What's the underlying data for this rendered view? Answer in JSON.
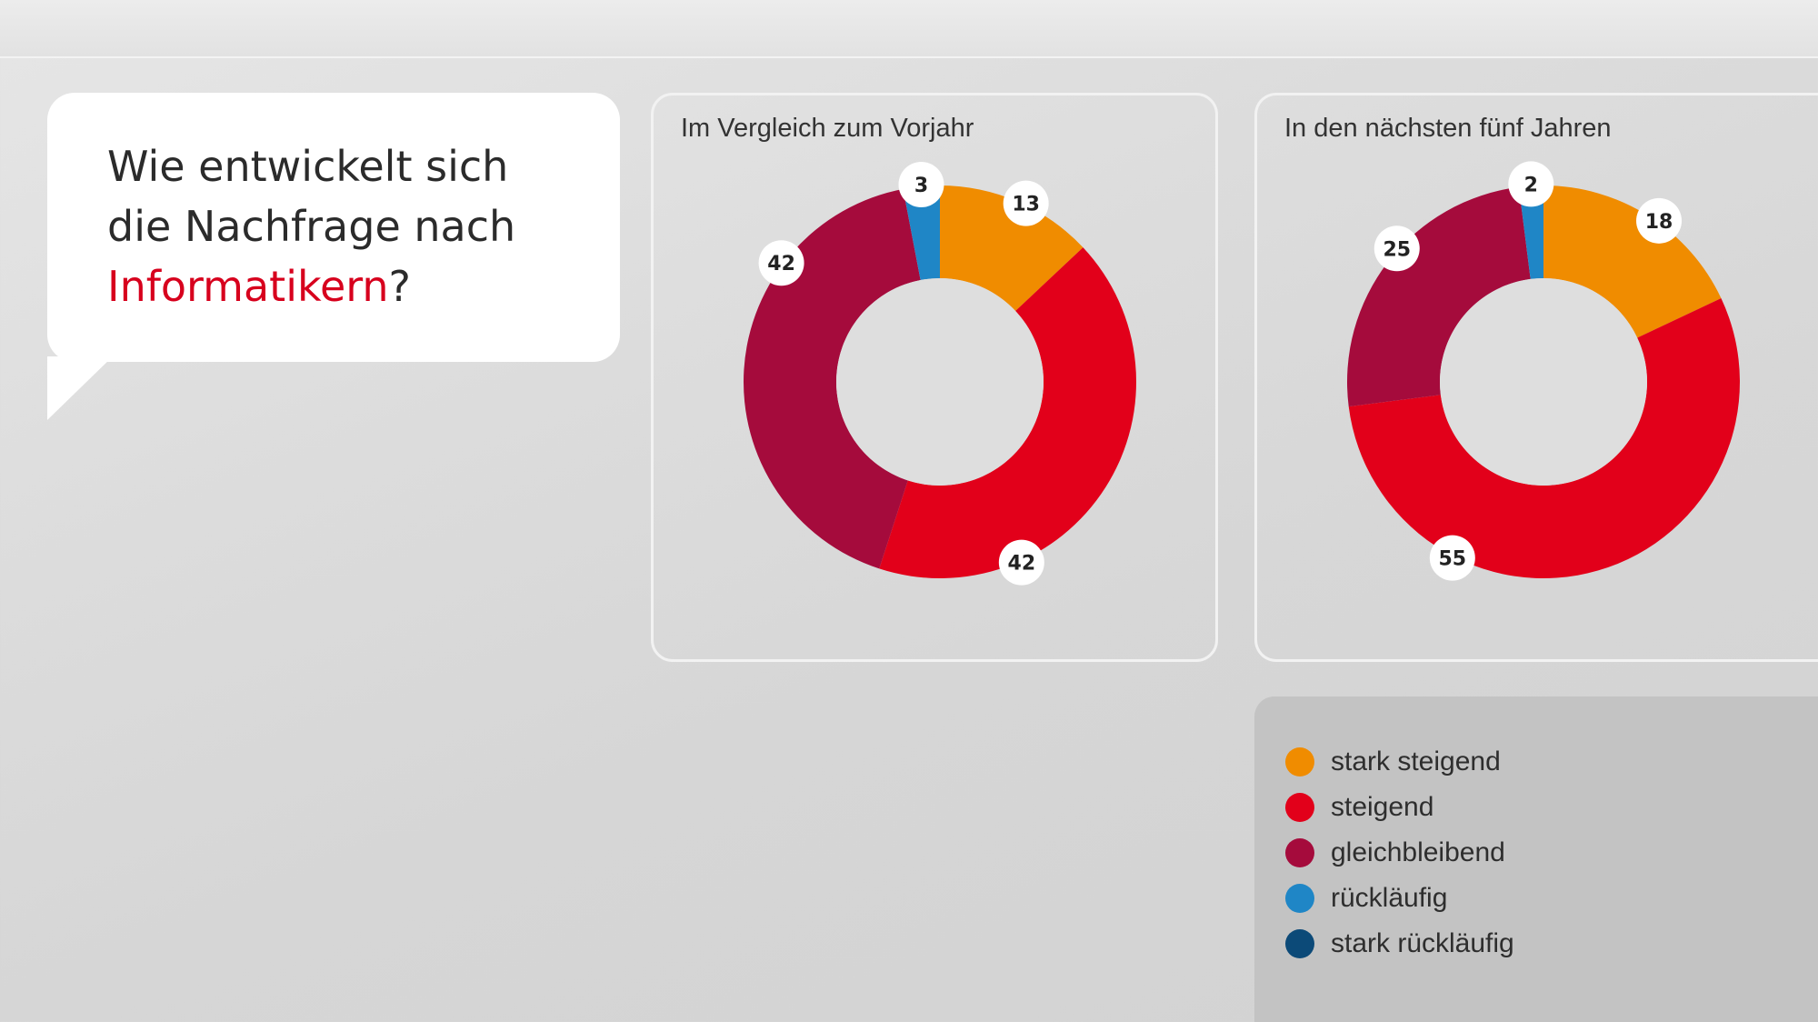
{
  "question": {
    "line1": "Wie entwickelt sich",
    "line2": "die Nachfrage nach",
    "highlight": "Informatikern",
    "suffix": "?"
  },
  "colors": {
    "stark_steigend": "#f08c00",
    "steigend": "#e2001a",
    "gleichbleibend": "#a50b3c",
    "ruecklaeufig": "#1f86c6",
    "stark_ruecklaeufig": "#0c4a78",
    "highlight_text": "#d7001d"
  },
  "legend": [
    {
      "label": "stark steigend",
      "color": "#f08c00"
    },
    {
      "label": "steigend",
      "color": "#e2001a"
    },
    {
      "label": "gleichbleibend",
      "color": "#a50b3c"
    },
    {
      "label": "rückläufig",
      "color": "#1f86c6"
    },
    {
      "label": "stark rückläufig",
      "color": "#0c4a78"
    }
  ],
  "chart_data": [
    {
      "type": "pie",
      "title": "Im Vergleich zum Vorjahr",
      "categories": [
        "stark steigend",
        "steigend",
        "gleichbleibend",
        "rückläufig",
        "stark rückläufig"
      ],
      "values": [
        13,
        42,
        42,
        3,
        0
      ],
      "colors": [
        "#f08c00",
        "#e2001a",
        "#a50b3c",
        "#1f86c6",
        "#0c4a78"
      ],
      "labels": [
        "13",
        "42",
        "42",
        "3",
        ""
      ]
    },
    {
      "type": "pie",
      "title": "In den nächsten fünf Jahren",
      "categories": [
        "stark steigend",
        "steigend",
        "gleichbleibend",
        "rückläufig",
        "stark rückläufig"
      ],
      "values": [
        18,
        55,
        25,
        2,
        0
      ],
      "colors": [
        "#f08c00",
        "#e2001a",
        "#a50b3c",
        "#1f86c6",
        "#0c4a78"
      ],
      "labels": [
        "18",
        "55",
        "25",
        "2",
        ""
      ]
    }
  ]
}
